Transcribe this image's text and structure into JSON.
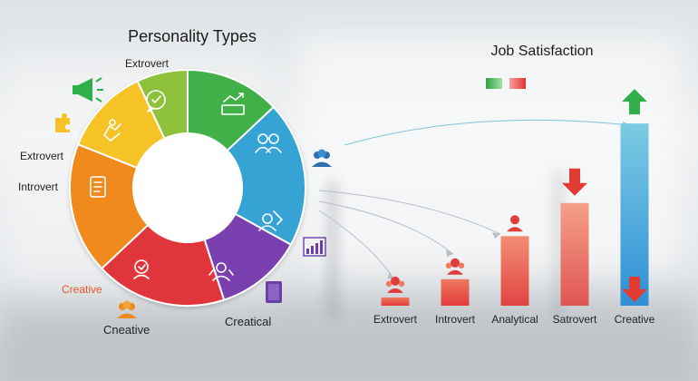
{
  "donut": {
    "title": "Personality Types",
    "slices": [
      {
        "label": "Extrovert",
        "value": 13,
        "color": "#43b04a"
      },
      {
        "label": "",
        "value": 20,
        "color": "#35a3d4"
      },
      {
        "label": "",
        "value": 12,
        "color": "#7a3fb0"
      },
      {
        "label": "Creatical",
        "value": 18,
        "color": "#e0353b"
      },
      {
        "label": "Creative",
        "value": 18,
        "color": "#f08a1e"
      },
      {
        "label": "",
        "value": 12,
        "color": "#f5c328"
      },
      {
        "label": "",
        "value": 7,
        "color": "#8ec23c"
      }
    ],
    "side_labels": [
      {
        "text": "Extrovert",
        "color": "#222222"
      },
      {
        "text": "Introvert",
        "color": "#222222"
      },
      {
        "text": "Creative",
        "color": "#e4572e"
      },
      {
        "text": "Cneative",
        "color": "#222222"
      }
    ]
  },
  "chart_data": {
    "type": "bar",
    "title": "Job Satisfaction",
    "categories": [
      "Extrovert",
      "Introvert",
      "Analytical",
      "Satrovert",
      "Creative"
    ],
    "values": [
      5,
      16,
      42,
      62,
      110
    ],
    "ylim": [
      0,
      115
    ],
    "grid": false,
    "legend": "top",
    "legend_swatches": [
      "#3fb24f",
      "#e24a3b"
    ],
    "bar_colors": [
      [
        "#f0795f",
        "#e23b3b"
      ],
      [
        "#f0795f",
        "#e23b3b"
      ],
      [
        "#f28d72",
        "#e24444"
      ],
      [
        "#f4a088",
        "#e05555"
      ],
      [
        "#7ccbe3",
        "#2f8fd6"
      ]
    ],
    "arrows": [
      {
        "bar": 3,
        "direction": "down",
        "color": "#e03c31"
      },
      {
        "bar": 4,
        "direction": "up",
        "color": "#2fae4a"
      },
      {
        "bar": 4,
        "direction": "down",
        "color": "#e03c31",
        "at": "bottom"
      }
    ]
  },
  "icons": {
    "megaphone": "megaphone-icon",
    "people_group": "people-group-icon",
    "chart": "bar-chart-icon",
    "book": "book-icon",
    "person": "person-icon"
  }
}
